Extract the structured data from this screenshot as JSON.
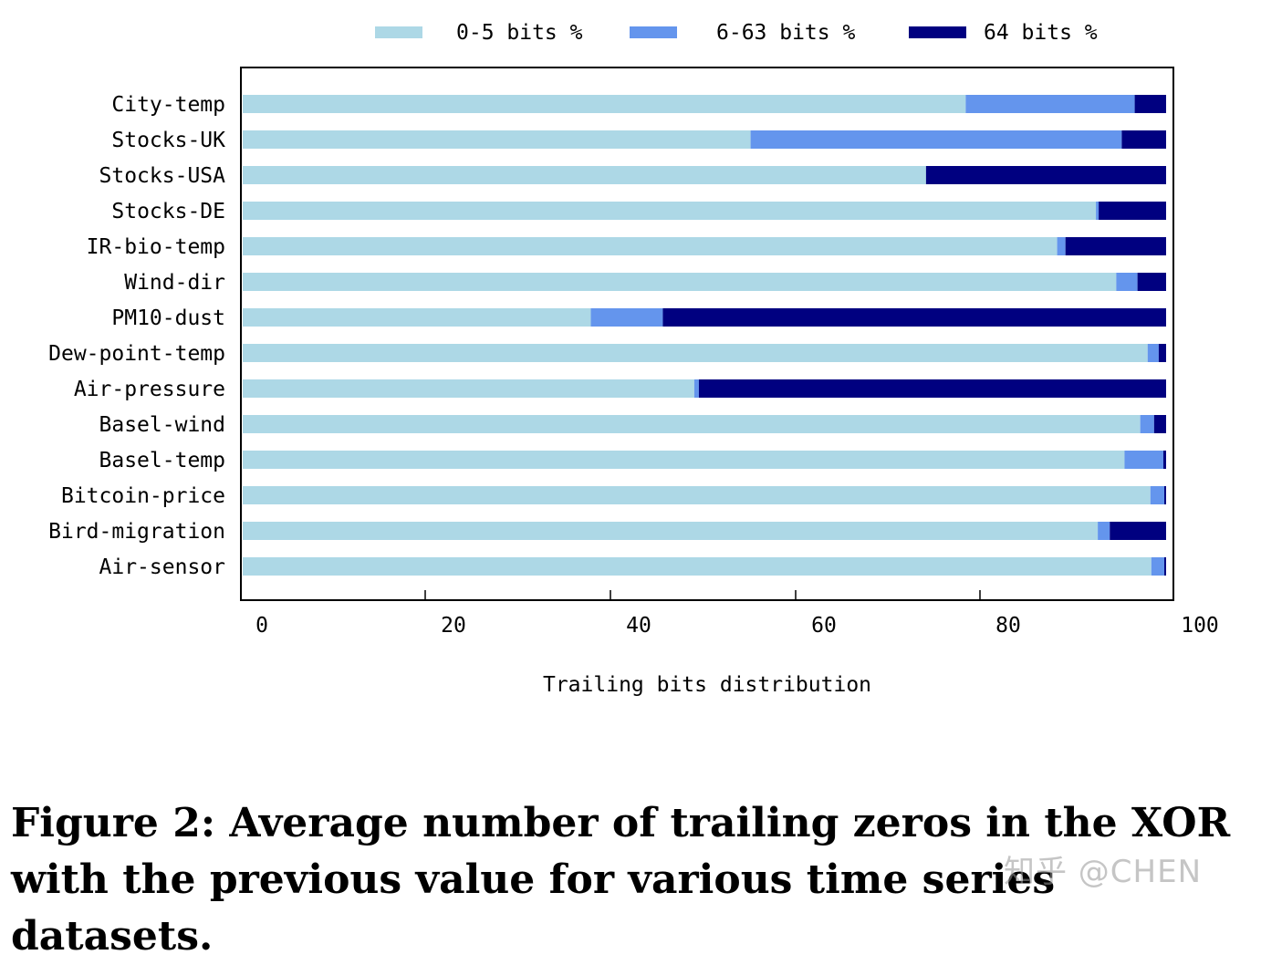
{
  "chart_data": {
    "type": "bar",
    "orientation": "horizontal",
    "stacked": true,
    "categories": [
      "City-temp",
      "Stocks-UK",
      "Stocks-USA",
      "Stocks-DE",
      "IR-bio-temp",
      "Wind-dir",
      "PM10-dust",
      "Dew-point-temp",
      "Air-pressure",
      "Basel-wind",
      "Basel-temp",
      "Bitcoin-price",
      "Bird-migration",
      "Air-sensor"
    ],
    "series": [
      {
        "name": "0-5 bits %",
        "color": "#add8e6",
        "values": [
          78.3,
          55.0,
          74.0,
          92.4,
          88.2,
          94.6,
          37.7,
          98.0,
          48.9,
          97.2,
          95.5,
          98.3,
          92.6,
          98.4
        ]
      },
      {
        "name": "6-63 bits %",
        "color": "#6495ed",
        "values": [
          18.3,
          40.2,
          0.0,
          0.3,
          0.9,
          2.3,
          7.8,
          1.2,
          0.5,
          1.5,
          4.2,
          1.5,
          1.3,
          1.4
        ]
      },
      {
        "name": "64 bits %",
        "color": "#000080",
        "values": [
          3.4,
          4.8,
          26.0,
          7.3,
          10.9,
          3.1,
          54.5,
          0.8,
          50.6,
          1.3,
          0.3,
          0.2,
          6.1,
          0.2
        ]
      }
    ],
    "x_ticks": [
      0,
      20,
      40,
      60,
      80,
      100
    ],
    "xlim": [
      0,
      100
    ],
    "xlabel": "Trailing bits distribution",
    "ylabel": "",
    "grid": false,
    "legend_position": "top"
  },
  "figure_caption": "Figure 2: Average number of trailing zeros in the XOR with the previous value for various time series datasets.",
  "watermark": "知乎 @CHEN"
}
